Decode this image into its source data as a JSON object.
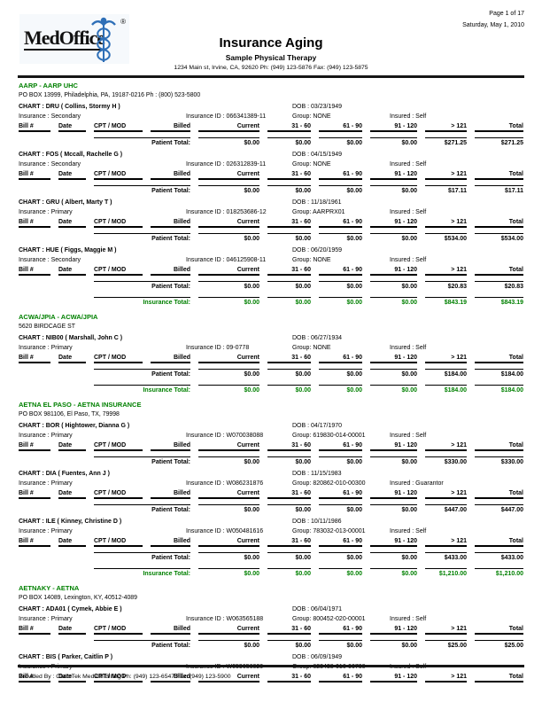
{
  "page": {
    "page_info": "Page 1 of 17",
    "date": "Saturday, May 1, 2010",
    "logo_text": "MedOffice",
    "logo_reg": "®",
    "title": "Insurance Aging",
    "practice": "Sample Physical Therapy",
    "practice_address": "1234 Main st, Irvine, CA, 92620 Ph: (949) 123-5876 Fax: (949) 123-5875",
    "footer": "Provided By : ClaimTek Medical Billing Ph: (949) 123-6547 Fax: (949) 123-5900"
  },
  "colors": {
    "accent_green": "#008000",
    "rule_dark": "#151515",
    "logo_blue": "#2e6fb7"
  },
  "table": {
    "columns": [
      "Bill #",
      "Date",
      "CPT / MOD",
      "Billed",
      "Current",
      "31 - 60",
      "61 - 90",
      "91 - 120",
      "> 121",
      "Total"
    ],
    "patient_total_label": "Patient Total:",
    "insurance_total_label": "Insurance Total:"
  },
  "sections": [
    {
      "name": "AARP - AARP UHC",
      "address": "PO BOX 13999, Philadelphia, PA, 19187-0216 Ph : (800) 523-5800",
      "charts": [
        {
          "chart": "CHART : DRU ( Collins, Stormy H )",
          "dob": "DOB : 03/23/1949",
          "insurance": "Insurance : Secondary",
          "insurance_id": "Insurance ID : 066341389-11",
          "group": "Group: NONE",
          "insured": "Insured : Self",
          "patient_total": [
            "$0.00",
            "$0.00",
            "$0.00",
            "$0.00",
            "$271.25",
            "$271.25"
          ]
        },
        {
          "chart": "CHART : FOS ( Mccall, Rachelle G )",
          "dob": "DOB : 04/15/1949",
          "insurance": "Insurance : Secondary",
          "insurance_id": "Insurance ID : 026312839-11",
          "group": "Group: NONE",
          "insured": "Insured : Self",
          "patient_total": [
            "$0.00",
            "$0.00",
            "$0.00",
            "$0.00",
            "$17.11",
            "$17.11"
          ]
        },
        {
          "chart": "CHART : GRU ( Albert, Marty T )",
          "dob": "DOB : 11/18/1961",
          "insurance": "Insurance : Primary",
          "insurance_id": "Insurance ID : 018253686-12",
          "group": "Group: AARPRX01",
          "insured": "Insured : Self",
          "patient_total": [
            "$0.00",
            "$0.00",
            "$0.00",
            "$0.00",
            "$534.00",
            "$534.00"
          ]
        },
        {
          "chart": "CHART : HUE ( Figgs, Maggie M )",
          "dob": "DOB : 06/20/1959",
          "insurance": "Insurance : Secondary",
          "insurance_id": "Insurance ID : 046125908-11",
          "group": "Group: NONE",
          "insured": "Insured : Self",
          "patient_total": [
            "$0.00",
            "$0.00",
            "$0.00",
            "$0.00",
            "$20.83",
            "$20.83"
          ]
        }
      ],
      "insurance_total": [
        "$0.00",
        "$0.00",
        "$0.00",
        "$0.00",
        "$843.19",
        "$843.19"
      ]
    },
    {
      "name": "ACWA/JPIA - ACWA/JPIA",
      "address": "5620 BIRDCAGE ST",
      "charts": [
        {
          "chart": "CHART : NIB00 ( Marshall, John C )",
          "dob": "DOB : 06/27/1934",
          "insurance": "Insurance : Primary",
          "insurance_id": "Insurance ID : 09-0778",
          "group": "Group: NONE",
          "insured": "Insured : Self",
          "patient_total": [
            "$0.00",
            "$0.00",
            "$0.00",
            "$0.00",
            "$184.00",
            "$184.00"
          ]
        }
      ],
      "insurance_total": [
        "$0.00",
        "$0.00",
        "$0.00",
        "$0.00",
        "$184.00",
        "$184.00"
      ]
    },
    {
      "name": "AETNA EL PASO - AETNA INSURANCE",
      "address": "PO BOX 981106, El Paso, TX, 79998",
      "charts": [
        {
          "chart": "CHART : BOR ( Hightower, Dianna G )",
          "dob": "DOB : 04/17/1970",
          "insurance": "Insurance : Primary",
          "insurance_id": "Insurance ID : W070038088",
          "group": "Group: 619830-014-00001",
          "insured": "Insured : Self",
          "patient_total": [
            "$0.00",
            "$0.00",
            "$0.00",
            "$0.00",
            "$330.00",
            "$330.00"
          ]
        },
        {
          "chart": "CHART : DIA ( Fuentes, Ann J )",
          "dob": "DOB : 11/15/1983",
          "insurance": "Insurance : Primary",
          "insurance_id": "Insurance ID : W086231876",
          "group": "Group: 820862-010-00300",
          "insured": "Insured : Guarantor",
          "patient_total": [
            "$0.00",
            "$0.00",
            "$0.00",
            "$0.00",
            "$447.00",
            "$447.00"
          ]
        },
        {
          "chart": "CHART : ILE ( Kinney, Christine D )",
          "dob": "DOB : 10/11/1986",
          "insurance": "Insurance : Primary",
          "insurance_id": "Insurance ID : W050481616",
          "group": "Group: 783032-013-00001",
          "insured": "Insured : Self",
          "patient_total": [
            "$0.00",
            "$0.00",
            "$0.00",
            "$0.00",
            "$433.00",
            "$433.00"
          ]
        }
      ],
      "insurance_total": [
        "$0.00",
        "$0.00",
        "$0.00",
        "$0.00",
        "$1,210.00",
        "$1,210.00"
      ]
    },
    {
      "name": "AETNAKY - AETNA",
      "address": "PO BOX 14089, Lexington, KY, 40512-4089",
      "charts": [
        {
          "chart": "CHART : ADA01 ( Cymek, Abbie E )",
          "dob": "DOB : 06/04/1971",
          "insurance": "Insurance : Primary",
          "insurance_id": "Insurance ID : W063565188",
          "group": "Group: 800452-020-00001",
          "insured": "Insured : Self",
          "patient_total": [
            "$0.00",
            "$0.00",
            "$0.00",
            "$0.00",
            "$25.00",
            "$25.00"
          ]
        },
        {
          "chart": "CHART : BIS ( Parker, Caitlin P )",
          "dob": "DOB : 06/09/1949",
          "insurance": "Insurance : Primary",
          "insurance_id": "Insurance ID : W059656020",
          "group": "Group: 623438-010-00700",
          "insured": "Insured : Self",
          "patient_total": null
        }
      ],
      "insurance_total": null
    }
  ]
}
